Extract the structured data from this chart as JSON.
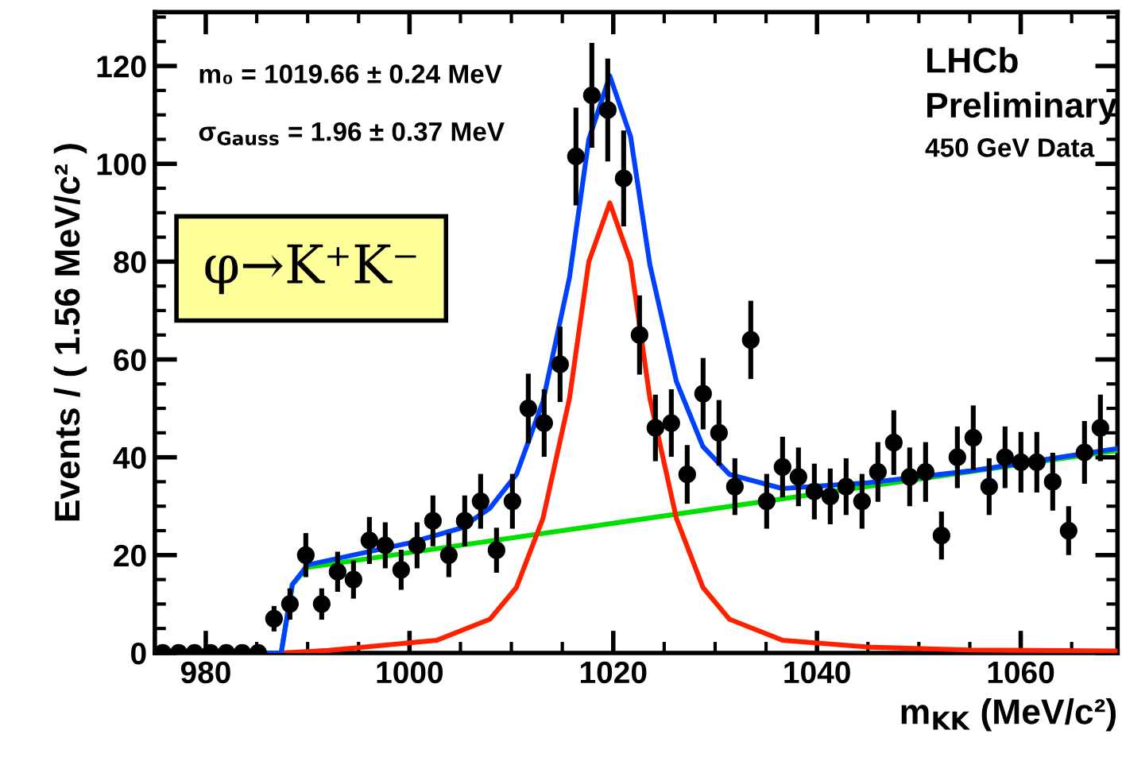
{
  "chart_data": {
    "type": "scatter",
    "xlabel": "m$_{KK}$ (MeV/c²)",
    "ylabel": "Events / ( 1.56 MeV/c² )",
    "xlim": [
      975,
      1069.5
    ],
    "ylim": [
      0,
      131
    ],
    "xticks": [
      980,
      1000,
      1020,
      1040,
      1060
    ],
    "yticks": [
      0,
      20,
      40,
      60,
      80,
      100,
      120
    ],
    "grid": false,
    "legend": false,
    "annotations": [
      "m₀ = 1019.66 ± 0.24 MeV",
      "σ$_{Gauss}$ = 1.96 ± 0.37 MeV",
      "LHCb",
      "Preliminary",
      "450 GeV Data",
      "φ→K⁺K⁻"
    ],
    "series": [
      {
        "color": "#000000",
        "marker": "circle",
        "x": [
          975.78,
          977.34,
          978.9,
          980.46,
          982.02,
          983.58,
          985.14,
          986.7,
          988.26,
          989.82,
          991.38,
          992.94,
          994.5,
          996.06,
          997.62,
          999.18,
          1000.74,
          1002.3,
          1003.86,
          1005.42,
          1006.98,
          1008.54,
          1010.1,
          1011.66,
          1013.22,
          1014.78,
          1016.34,
          1017.9,
          1019.46,
          1021.02,
          1022.58,
          1024.14,
          1025.7,
          1027.26,
          1028.82,
          1030.38,
          1031.94,
          1033.5,
          1035.06,
          1036.62,
          1038.18,
          1039.74,
          1041.3,
          1042.86,
          1044.42,
          1045.98,
          1047.54,
          1049.1,
          1050.66,
          1052.22,
          1053.78,
          1055.34,
          1056.9,
          1058.46,
          1060.02,
          1061.58,
          1063.14,
          1064.7,
          1066.26,
          1067.82
        ],
        "values": [
          0,
          0,
          0,
          0,
          0,
          0,
          0,
          7,
          10,
          20,
          10,
          16.6,
          15,
          23,
          22,
          17,
          22,
          27,
          20,
          27,
          31,
          21,
          31,
          50,
          47,
          59,
          101.5,
          114,
          111,
          97,
          65,
          46,
          47,
          36.5,
          53,
          45,
          34,
          64,
          31,
          38,
          36,
          33,
          32,
          34,
          31,
          37,
          43,
          36,
          37,
          24,
          40,
          44,
          34,
          40,
          39,
          39,
          35,
          25,
          41,
          46
        ],
        "errors": [
          null,
          null,
          null,
          null,
          null,
          null,
          null,
          2.6,
          3.2,
          4.5,
          3.2,
          4.1,
          3.9,
          4.8,
          4.7,
          4.1,
          4.7,
          5.2,
          4.5,
          5.2,
          5.6,
          4.6,
          5.6,
          7.1,
          6.9,
          7.7,
          10,
          10.7,
          10.5,
          9.8,
          8.1,
          6.8,
          6.9,
          6,
          7.3,
          6.7,
          5.8,
          8,
          5.6,
          6.2,
          6,
          5.7,
          5.7,
          5.8,
          5.6,
          6.1,
          6.6,
          6,
          6.1,
          4.9,
          6.3,
          6.6,
          5.8,
          6.3,
          6.2,
          6.2,
          5.9,
          5,
          6.4,
          6.8
        ]
      },
      {
        "type": "line",
        "color": "#00e000",
        "line_style": "solid",
        "x": [
          975,
          987.4,
          988.5,
          990,
          1069.5
        ],
        "values": [
          0,
          0,
          14,
          17.5,
          41.4
        ]
      },
      {
        "type": "line",
        "color": "#ff2000",
        "line_style": "solid",
        "x": [
          975,
          987.4,
          992,
          1002.7,
          1007.9,
          1010.5,
          1013.1,
          1015.7,
          1017.6,
          1019.66,
          1021.7,
          1023.6,
          1026.2,
          1028.8,
          1031.4,
          1036.6,
          1045,
          1055,
          1069.5
        ],
        "values": [
          0,
          0,
          0.5,
          2.6,
          6.9,
          13.4,
          27.5,
          52,
          80,
          92,
          80,
          52,
          27.5,
          13.4,
          6.9,
          2.6,
          1.2,
          0.6,
          0.4
        ]
      },
      {
        "type": "line",
        "color": "#0040ff",
        "line_style": "solid",
        "x": [
          975,
          987.4,
          988.5,
          990,
          1000,
          1005,
          1007.9,
          1010.5,
          1013.1,
          1015.7,
          1017.6,
          1019.66,
          1021.7,
          1023.6,
          1026.2,
          1028.8,
          1031.4,
          1036.6,
          1045,
          1055,
          1069.5
        ],
        "values": [
          0,
          0,
          14,
          18,
          22.5,
          25.5,
          29.6,
          36.5,
          51.4,
          76.7,
          105,
          118,
          105.6,
          79.3,
          55.5,
          42.2,
          36.5,
          33.6,
          34.8,
          37.2,
          41.8
        ]
      }
    ]
  }
}
